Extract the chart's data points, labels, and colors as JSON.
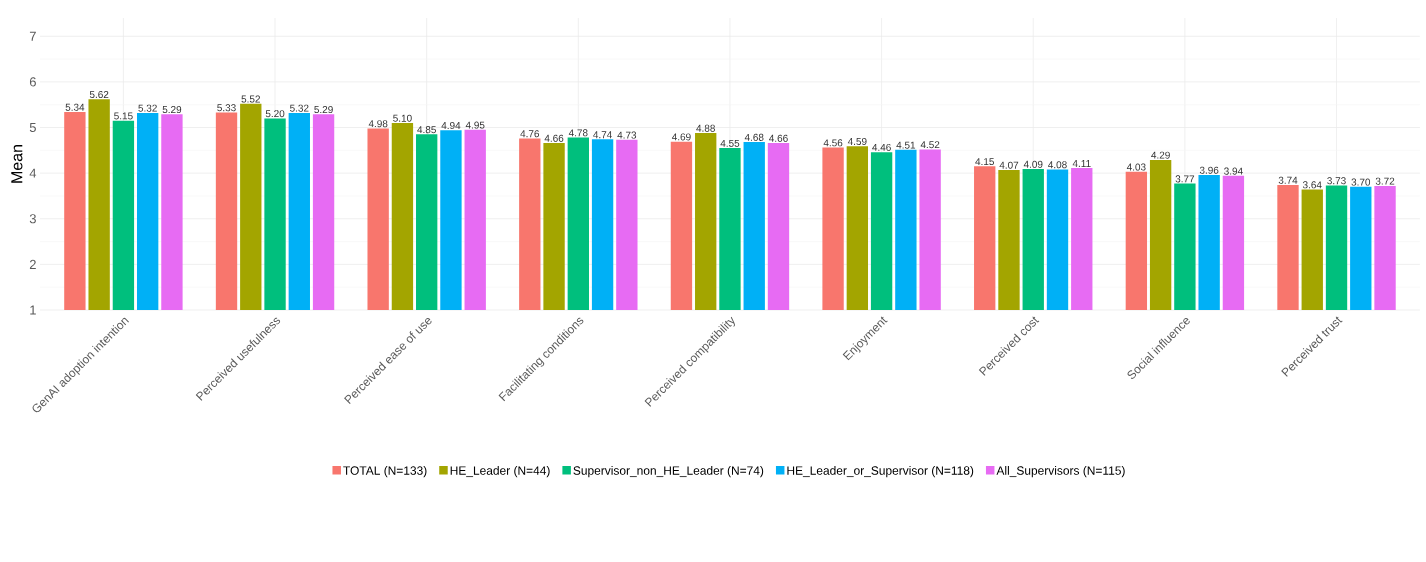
{
  "chart_data": {
    "type": "bar",
    "ylabel": "Mean",
    "categories": [
      "GenAI adoption intention",
      "Perceived usefulness",
      "Perceived ease of use",
      "Facilitating conditions",
      "Perceived compatibility",
      "Enjoyment",
      "Perceived cost",
      "Social influence",
      "Perceived trust"
    ],
    "series": [
      {
        "name": "TOTAL (N=133)",
        "color": "#f8766d",
        "values": [
          5.34,
          5.33,
          4.98,
          4.76,
          4.69,
          4.56,
          4.15,
          4.03,
          3.74
        ],
        "value_labels": [
          "5.34",
          "5.33",
          "4.98",
          "4.76",
          "4.69",
          "4.56",
          "4.15",
          "4.03",
          "3.74"
        ]
      },
      {
        "name": "HE_Leader (N=44)",
        "color": "#a3a500",
        "values": [
          5.62,
          5.52,
          5.1,
          4.66,
          4.88,
          4.59,
          4.07,
          4.29,
          3.64
        ],
        "value_labels": [
          "5.62",
          "5.52",
          "5.10",
          "4.66",
          "4.88",
          "4.59",
          "4.07",
          "4.29",
          "3.64"
        ]
      },
      {
        "name": "Supervisor_non_HE_Leader (N=74)",
        "color": "#00bf7d",
        "values": [
          5.15,
          5.2,
          4.85,
          4.78,
          4.55,
          4.46,
          4.09,
          3.77,
          3.73
        ],
        "value_labels": [
          "5.15",
          "5.20",
          "4.85",
          "4.78",
          "4.55",
          "4.46",
          "4.09",
          "3.77",
          "3.73"
        ]
      },
      {
        "name": "HE_Leader_or_Supervisor (N=118)",
        "color": "#00b0f6",
        "values": [
          5.32,
          5.32,
          4.94,
          4.74,
          4.68,
          4.51,
          4.08,
          3.96,
          3.7
        ],
        "value_labels": [
          "5.32",
          "5.32",
          "4.94",
          "4.74",
          "4.68",
          "4.51",
          "4.08",
          "3.96",
          "3.70"
        ]
      },
      {
        "name": "All_Supervisors (N=115)",
        "color": "#e76bf3",
        "values": [
          5.29,
          5.29,
          4.95,
          4.73,
          4.66,
          4.52,
          4.11,
          3.94,
          3.72
        ],
        "value_labels": [
          "5.29",
          "5.29",
          "4.95",
          "4.73",
          "4.66",
          "4.52",
          "4.11",
          "3.94",
          "3.72"
        ]
      }
    ],
    "ylim": [
      1,
      7.4
    ],
    "yticks": [
      1,
      2,
      3,
      4,
      5,
      6,
      7
    ],
    "grid": true,
    "legend": "bottom"
  }
}
